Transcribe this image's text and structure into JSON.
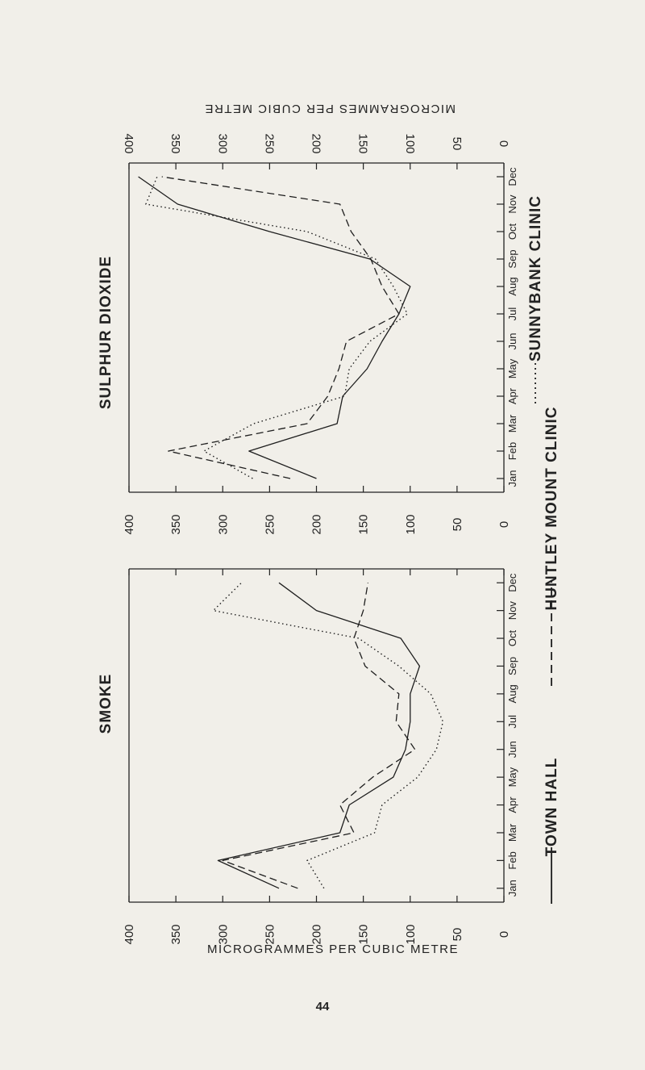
{
  "page": {
    "unit_label_bottom": "MICROGRAMMES PER CUBIC METRE",
    "unit_label_top": "MICROGRAMMES PER CUBIC METRE",
    "page_number": "44"
  },
  "legend": {
    "items": [
      {
        "label": "TOWN HALL",
        "style": "solid"
      },
      {
        "label": "HUNTLEY MOUNT CLINIC",
        "style": "dashed"
      },
      {
        "label": "SUNNYBANK CLINIC",
        "style": "dotted"
      }
    ]
  },
  "chart_data": [
    {
      "type": "line",
      "title": "SULPHUR DIOXIDE",
      "x": [
        "Jan",
        "Feb",
        "Mar",
        "Apr",
        "May",
        "Jun",
        "Jul",
        "Aug",
        "Sep",
        "Oct",
        "Nov",
        "Dec"
      ],
      "ylim": [
        0,
        400
      ],
      "yticks": [
        0,
        50,
        100,
        150,
        200,
        250,
        300,
        350,
        400
      ],
      "series": [
        {
          "name": "TOWN HALL",
          "style": "solid",
          "values": [
            200,
            272,
            178,
            172,
            146,
            130,
            112,
            100,
            143,
            250,
            348,
            390
          ]
        },
        {
          "name": "HUNTLEY MOUNT CLINIC",
          "style": "dashed",
          "values": [
            228,
            358,
            210,
            188,
            176,
            168,
            112,
            130,
            142,
            163,
            175,
            365
          ]
        },
        {
          "name": "SUNNYBANK CLINIC",
          "style": "dotted",
          "values": [
            268,
            320,
            267,
            170,
            165,
            143,
            103,
            118,
            137,
            210,
            382,
            370
          ]
        }
      ]
    },
    {
      "type": "line",
      "title": "SMOKE",
      "x": [
        "Jan",
        "Feb",
        "Mar",
        "Apr",
        "May",
        "Jun",
        "Jul",
        "Aug",
        "Sep",
        "Oct",
        "Nov",
        "Dec"
      ],
      "ylim": [
        0,
        400
      ],
      "yticks": [
        0,
        50,
        100,
        150,
        200,
        250,
        300,
        350,
        400
      ],
      "series": [
        {
          "name": "TOWN HALL",
          "style": "solid",
          "values": [
            240,
            305,
            175,
            165,
            118,
            105,
            100,
            100,
            90,
            110,
            200,
            240
          ]
        },
        {
          "name": "HUNTLEY MOUNT CLINIC",
          "style": "dashed",
          "values": [
            220,
            300,
            160,
            175,
            140,
            95,
            115,
            112,
            148,
            160,
            150,
            145
          ]
        },
        {
          "name": "SUNNYBANK CLINIC",
          "style": "dotted",
          "values": [
            192,
            210,
            138,
            130,
            92,
            72,
            65,
            78,
            112,
            155,
            310,
            280
          ]
        }
      ]
    }
  ]
}
